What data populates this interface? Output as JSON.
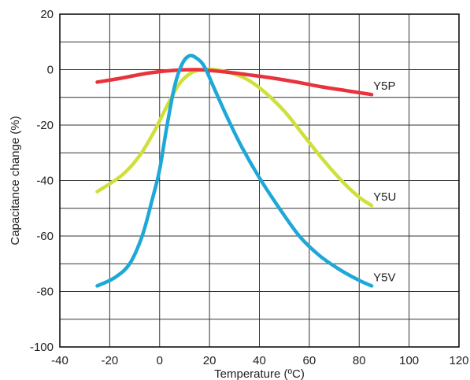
{
  "chart_data": {
    "type": "line",
    "title": "",
    "xlabel": "Temperature (ºC)",
    "ylabel": "Capacitance change (%)",
    "xlim": [
      -40,
      120
    ],
    "ylim": [
      -100,
      20
    ],
    "x_ticks": [
      -40,
      -20,
      0,
      20,
      40,
      60,
      80,
      100,
      120
    ],
    "y_ticks": [
      -100,
      -80,
      -60,
      -40,
      -20,
      0,
      20
    ],
    "x_tick_labels": [
      "-40",
      "-20",
      "0",
      "20",
      "40",
      "60",
      "80",
      "100",
      "120"
    ],
    "y_tick_labels": [
      "-100",
      "-80",
      "-60",
      "-40",
      "-20",
      "0",
      "20"
    ],
    "grid": true,
    "series": [
      {
        "name": "Y5P",
        "color": "#e8323c",
        "x": [
          -25,
          -15,
          -5,
          5,
          15,
          25,
          35,
          45,
          55,
          65,
          75,
          85
        ],
        "y": [
          -4.5,
          -3,
          -1.3,
          -0.3,
          0,
          -0.7,
          -1.8,
          -3,
          -4.5,
          -6.2,
          -7.6,
          -9
        ]
      },
      {
        "name": "Y5U",
        "color": "#cfe03a",
        "x": [
          -25,
          -15,
          -8,
          -2,
          3,
          8,
          13,
          18,
          22,
          28,
          35,
          42,
          50,
          58,
          66,
          74,
          80,
          85
        ],
        "y": [
          -44,
          -38,
          -31,
          -22,
          -13,
          -5,
          -1,
          0,
          0,
          -1,
          -3.5,
          -8,
          -15,
          -24,
          -33,
          -41,
          -46,
          -49
        ]
      },
      {
        "name": "Y5V",
        "color": "#1ea8d8",
        "x": [
          -25,
          -18,
          -12,
          -7,
          -3,
          0,
          3,
          6,
          9,
          12,
          15,
          18,
          22,
          27,
          33,
          40,
          48,
          56,
          64,
          72,
          80,
          85
        ],
        "y": [
          -78,
          -75,
          -70,
          -60,
          -47,
          -36,
          -20,
          -6,
          2,
          5,
          4,
          1,
          -7,
          -17,
          -28,
          -39,
          -50,
          -60,
          -67,
          -72,
          -76,
          -78
        ]
      }
    ]
  }
}
